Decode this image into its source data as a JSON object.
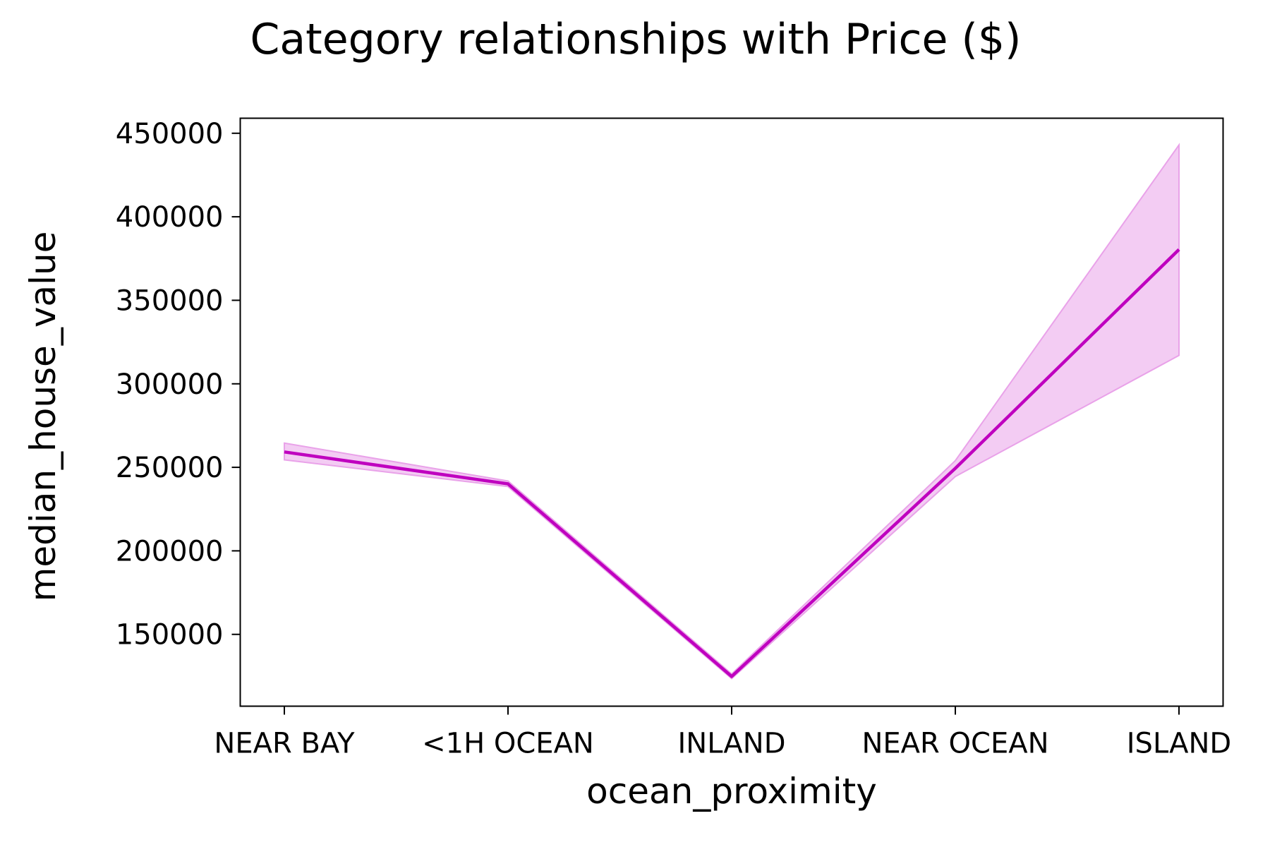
{
  "chart_data": {
    "type": "line",
    "title": "Category relationships with Price ($)",
    "xlabel": "ocean_proximity",
    "ylabel": "median_house_value",
    "categories": [
      "NEAR BAY",
      "<1H OCEAN",
      "INLAND",
      "NEAR OCEAN",
      "ISLAND"
    ],
    "series": [
      {
        "values": [
          259200,
          240100,
          124800,
          249400,
          380400
        ],
        "ci_low": [
          254500,
          238500,
          123500,
          244500,
          317000
        ],
        "ci_high": [
          264500,
          241800,
          126300,
          254000,
          443000
        ],
        "color": "#bf00bf",
        "band_color": "#e9a2e9"
      }
    ],
    "yticks": [
      150000,
      200000,
      250000,
      300000,
      350000,
      400000,
      450000
    ],
    "ylim": [
      107000,
      459000
    ],
    "grid": false,
    "legend": "none"
  }
}
